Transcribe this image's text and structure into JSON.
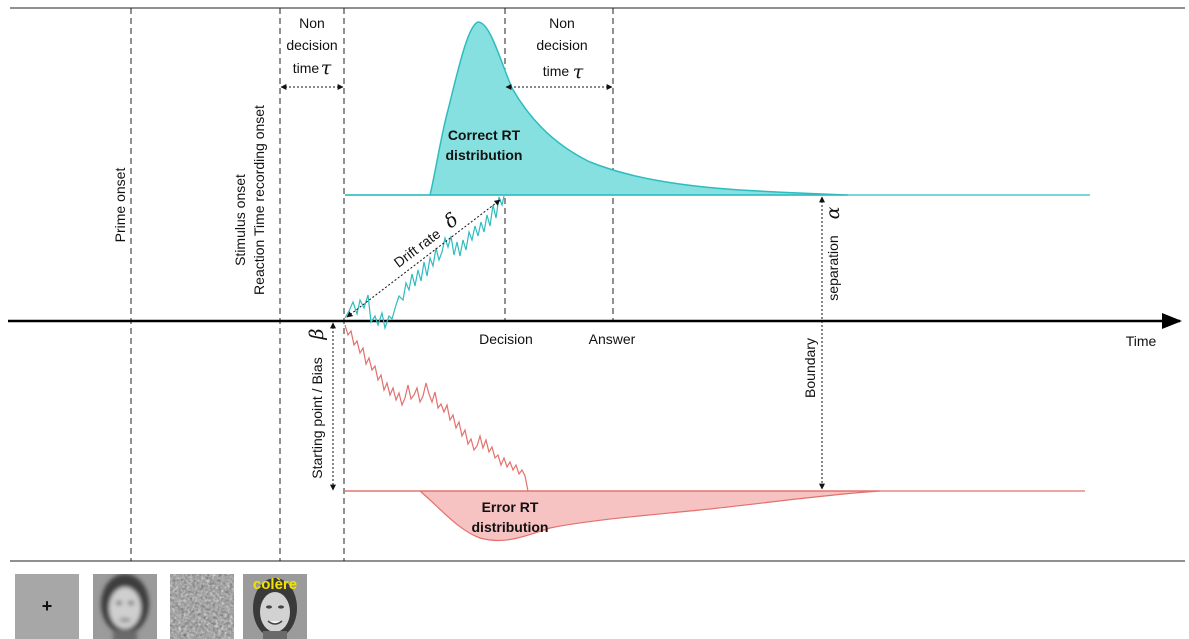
{
  "labels": {
    "prime_onset": "Prime onset",
    "stimulus_onset": "Stimulus onset",
    "rt_recording_onset": "Reaction Time recording onset",
    "non_decision_left_1": "Non",
    "non_decision_left_2": "decision",
    "non_decision_left_3": "time",
    "non_decision_right_1": "Non",
    "non_decision_right_2": "decision",
    "non_decision_right_3": "time",
    "tau_symbol": "τ",
    "correct_rt_1": "Correct RT",
    "correct_rt_2": "distribution",
    "error_rt_1": "Error RT",
    "error_rt_2": "distribution",
    "drift_rate": "Drift rate",
    "delta_symbol": "δ",
    "decision": "Decision",
    "answer": "Answer",
    "time": "Time",
    "starting_point": "Starting point / Bias",
    "beta_symbol": "β",
    "boundary": "Boundary",
    "separation": "separation",
    "alpha_symbol": "α"
  },
  "stimuli": {
    "fixation": "+",
    "word": "colère"
  },
  "colors": {
    "correct_fill": "#86e0e0",
    "correct_stroke": "#2fbcbf",
    "error_fill": "#f7c2c2",
    "error_stroke": "#e3706c",
    "axis": "#000000"
  }
}
